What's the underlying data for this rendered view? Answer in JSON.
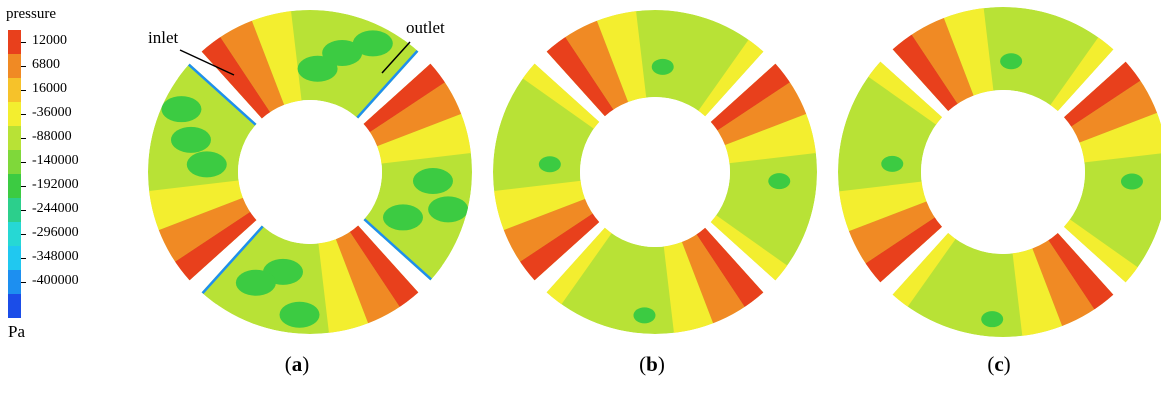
{
  "legend": {
    "title": "pressure",
    "unit": "Pa",
    "labels": [
      "12000",
      "6800",
      "16000",
      "-36000",
      "-88000",
      "-140000",
      "-192000",
      "-244000",
      "-296000",
      "-348000",
      "-400000"
    ],
    "colors": [
      "#e8401c",
      "#f08a24",
      "#f6c22a",
      "#f3ee2f",
      "#b8e236",
      "#7fd83a",
      "#3ccb42",
      "#2ccf8c",
      "#26d8d4",
      "#20c8f0",
      "#1d8ff0",
      "#1b4de8"
    ]
  },
  "annotations": {
    "inlet": "inlet",
    "outlet": "outlet"
  },
  "panels": [
    {
      "id": "a",
      "letter": "a"
    },
    {
      "id": "b",
      "letter": "b"
    },
    {
      "id": "c",
      "letter": "c"
    }
  ],
  "colors": {
    "red": "#e8401c",
    "orange": "#f08a24",
    "yellow": "#f3ee2f",
    "lightgreen": "#b8e236",
    "green": "#3ccb42",
    "cyan": "#26d8d4",
    "blue": "#1d8ff0"
  }
}
